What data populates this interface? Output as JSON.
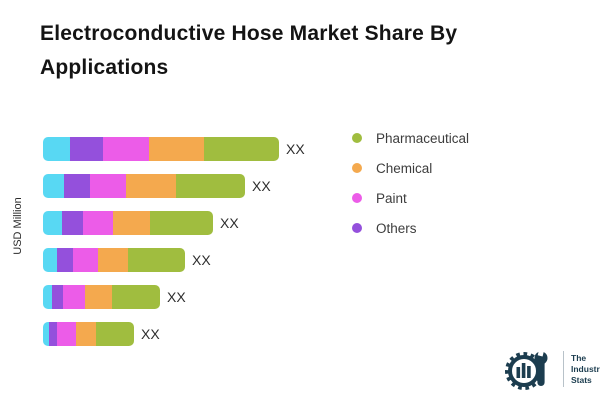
{
  "title": "Electroconductive Hose Market Share By Applications",
  "ylabel": "USD Million",
  "legend": {
    "items": [
      {
        "label": "Pharmaceutical",
        "color": "#a0bd3f"
      },
      {
        "label": "Chemical",
        "color": "#f4a94e"
      },
      {
        "label": "Paint",
        "color": "#ec5ce8"
      },
      {
        "label": "Others",
        "color": "#9450dc"
      }
    ]
  },
  "chart_data": {
    "type": "bar",
    "orientation": "horizontal",
    "stacked": true,
    "title": "Electroconductive Hose Market Share By Applications",
    "ylabel": "USD Million",
    "xlabel": "",
    "value_labels_shown": "XX",
    "grid": false,
    "legend_position": "right",
    "segment_names": [
      "",
      "Others",
      "Paint",
      "Chemical",
      "Pharmaceutical"
    ],
    "segment_colors": [
      "#58d8f3",
      "#9450dc",
      "#ec5ce8",
      "#f4a94e",
      "#a0bd3f"
    ],
    "bars": [
      {
        "value_label": "XX",
        "segments": [
          27,
          33,
          46,
          55,
          75
        ]
      },
      {
        "value_label": "XX",
        "segments": [
          21,
          26,
          36,
          50,
          69
        ]
      },
      {
        "value_label": "XX",
        "segments": [
          19,
          21,
          30,
          37,
          63
        ]
      },
      {
        "value_label": "XX",
        "segments": [
          14,
          16,
          25,
          30,
          57
        ]
      },
      {
        "value_label": "XX",
        "segments": [
          9,
          11,
          22,
          27,
          48
        ]
      },
      {
        "value_label": "XX",
        "segments": [
          6,
          8,
          19,
          20,
          38
        ]
      }
    ]
  },
  "logo": {
    "lines": [
      "The",
      "Industry",
      "Stats"
    ],
    "color": "#1c3d4f"
  }
}
